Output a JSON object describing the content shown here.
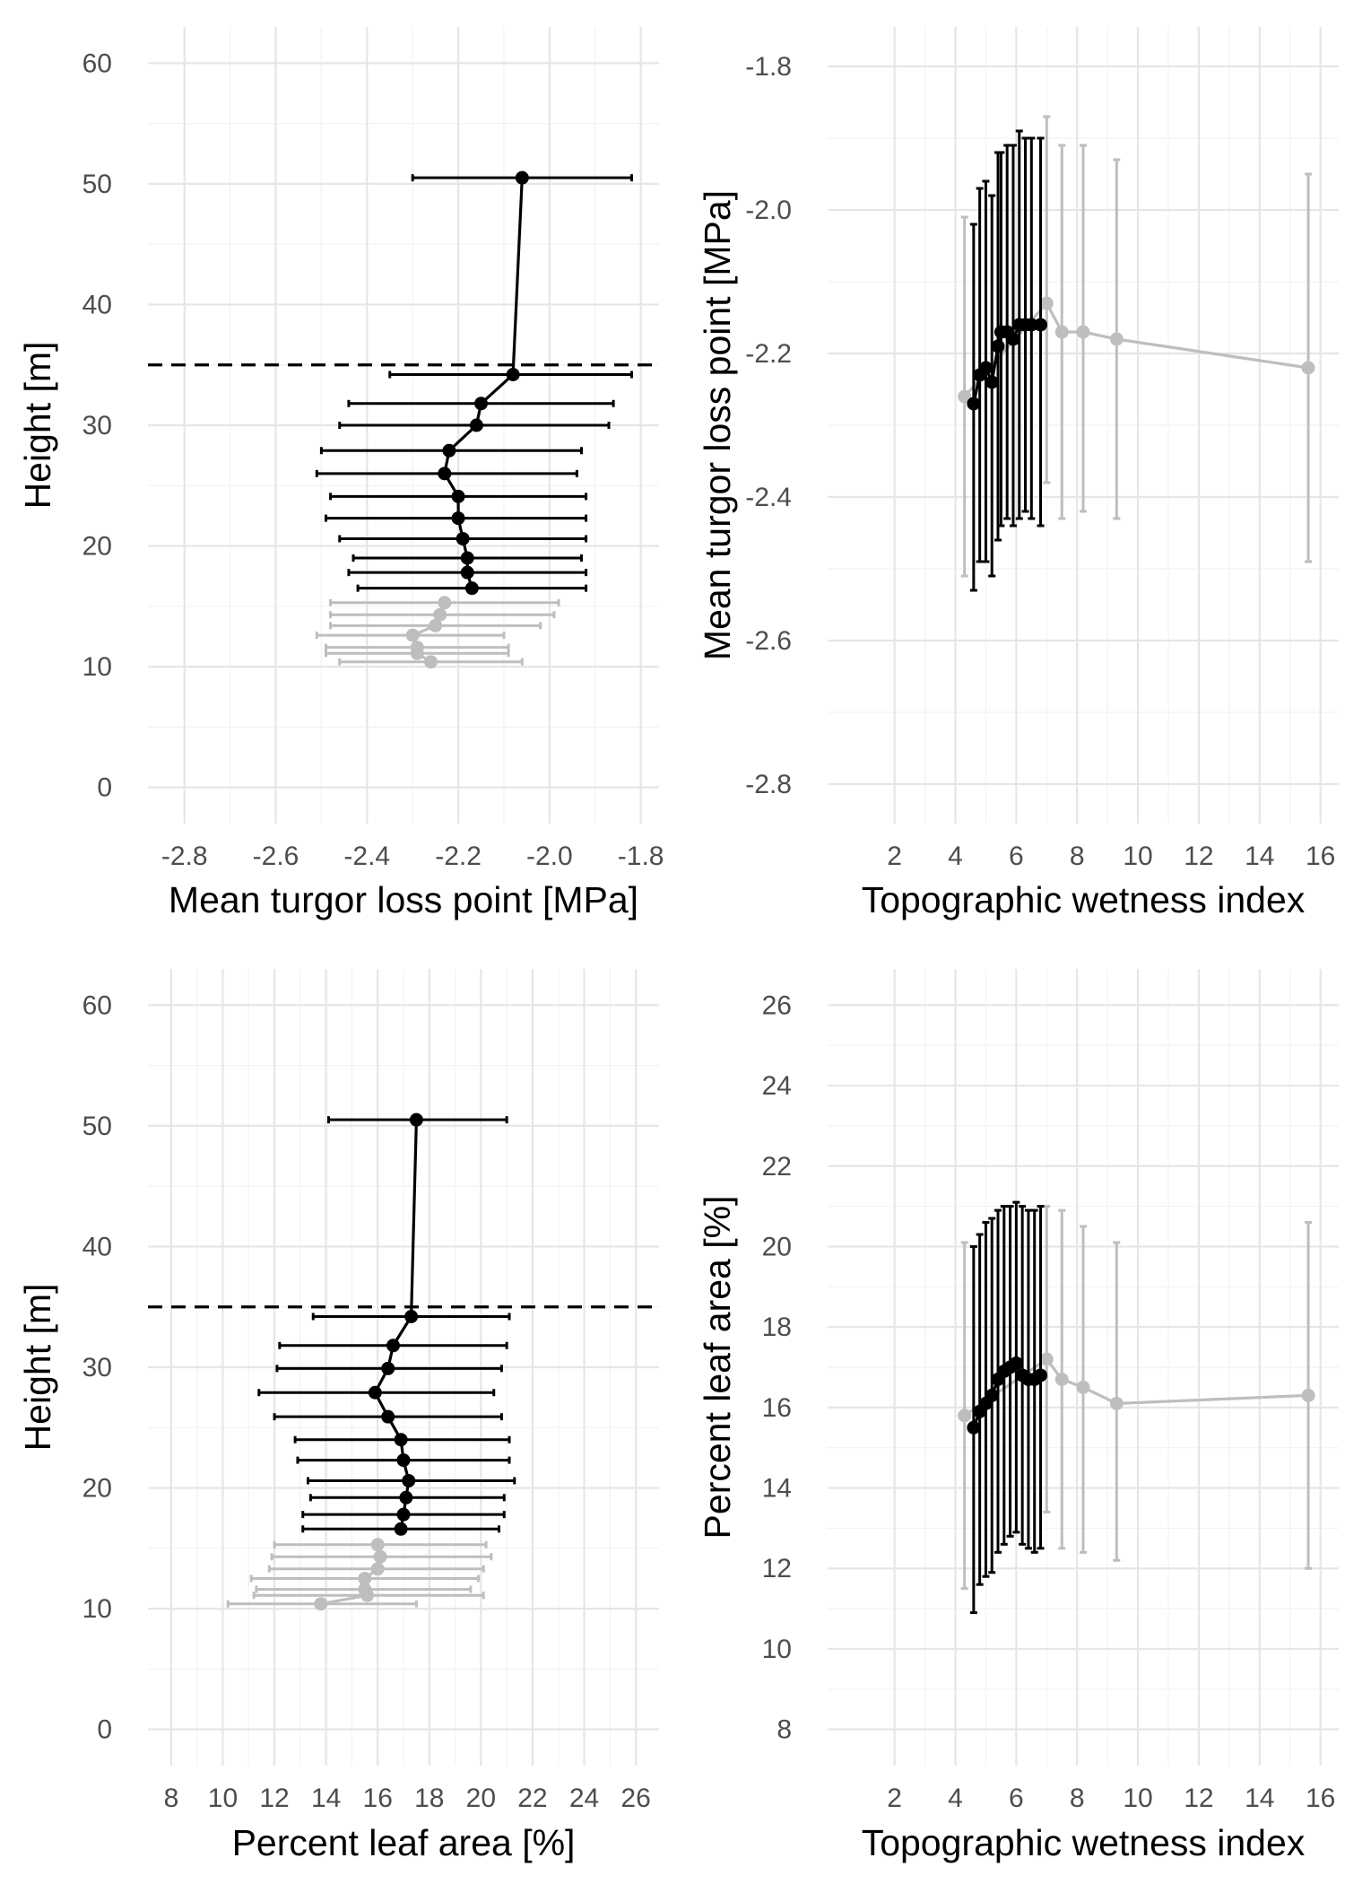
{
  "colors": {
    "canopy": "#000000",
    "understory": "#bebebe",
    "major_grid": "#e6e6e6",
    "minor_grid": "#f2f2f2",
    "tick_text": "#4d4d4d",
    "reference_line": "#000000"
  },
  "chart_data": [
    {
      "type": "line",
      "panel": "top-left",
      "title": "",
      "xlabel": "Mean turgor loss point [MPa]",
      "ylabel": "Height [m]",
      "xlim": [
        -2.88,
        -1.76
      ],
      "ylim": [
        -3,
        63
      ],
      "x_ticks": [
        -2.8,
        -2.6,
        -2.4,
        -2.2,
        -2.0,
        -1.8
      ],
      "x_tick_labels": [
        "-2.8",
        "-2.6",
        "-2.4",
        "-2.2",
        "-2.0",
        "-1.8"
      ],
      "y_ticks": [
        0,
        10,
        20,
        30,
        40,
        50,
        60
      ],
      "y_tick_labels": [
        "0",
        "10",
        "20",
        "30",
        "40",
        "50",
        "60"
      ],
      "grid": true,
      "reference_line": {
        "axis": "y",
        "value": 35,
        "style": "dashed"
      },
      "series": [
        {
          "style": "canopy",
          "points": [
            {
              "x": -2.17,
              "y": 16.5,
              "lo": -2.42,
              "hi": -1.92
            },
            {
              "x": -2.18,
              "y": 17.8,
              "lo": -2.44,
              "hi": -1.92
            },
            {
              "x": -2.18,
              "y": 19.0,
              "lo": -2.43,
              "hi": -1.93
            },
            {
              "x": -2.19,
              "y": 20.6,
              "lo": -2.46,
              "hi": -1.92
            },
            {
              "x": -2.2,
              "y": 22.3,
              "lo": -2.49,
              "hi": -1.92
            },
            {
              "x": -2.2,
              "y": 24.1,
              "lo": -2.48,
              "hi": -1.92
            },
            {
              "x": -2.23,
              "y": 26.0,
              "lo": -2.51,
              "hi": -1.94
            },
            {
              "x": -2.22,
              "y": 27.9,
              "lo": -2.5,
              "hi": -1.93
            },
            {
              "x": -2.16,
              "y": 30.0,
              "lo": -2.46,
              "hi": -1.87
            },
            {
              "x": -2.15,
              "y": 31.8,
              "lo": -2.44,
              "hi": -1.86
            },
            {
              "x": -2.08,
              "y": 34.2,
              "lo": -2.35,
              "hi": -1.82
            },
            {
              "x": -2.06,
              "y": 50.5,
              "lo": -2.3,
              "hi": -1.82
            }
          ]
        },
        {
          "style": "understory",
          "points": [
            {
              "x": -2.26,
              "y": 10.4,
              "lo": -2.46,
              "hi": -2.06
            },
            {
              "x": -2.29,
              "y": 11.1,
              "lo": -2.49,
              "hi": -2.09
            },
            {
              "x": -2.29,
              "y": 11.6,
              "lo": -2.49,
              "hi": -2.09
            },
            {
              "x": -2.3,
              "y": 12.6,
              "lo": -2.51,
              "hi": -2.1
            },
            {
              "x": -2.25,
              "y": 13.4,
              "lo": -2.48,
              "hi": -2.02
            },
            {
              "x": -2.24,
              "y": 14.3,
              "lo": -2.48,
              "hi": -1.99
            },
            {
              "x": -2.23,
              "y": 15.3,
              "lo": -2.48,
              "hi": -1.98
            }
          ]
        }
      ]
    },
    {
      "type": "line",
      "panel": "top-right",
      "title": "",
      "xlabel": "Topographic wetness index",
      "ylabel": "Mean turgor loss point [MPa]",
      "xlim": [
        -0.2,
        16.6
      ],
      "ylim": [
        -2.855,
        -1.745
      ],
      "x_ticks": [
        2,
        4,
        6,
        8,
        10,
        12,
        14,
        16
      ],
      "x_tick_labels": [
        "2",
        "4",
        "6",
        "8",
        "10",
        "12",
        "14",
        "16"
      ],
      "y_ticks": [
        -2.8,
        -2.6,
        -2.4,
        -2.2,
        -2.0,
        -1.8
      ],
      "y_tick_labels": [
        "-2.8",
        "-2.6",
        "-2.4",
        "-2.2",
        "-2.0",
        "-1.8"
      ],
      "grid": true,
      "series": [
        {
          "style": "understory",
          "points": [
            {
              "x": 4.3,
              "y": -2.26,
              "lo": -2.51,
              "hi": -2.01
            },
            {
              "x": 7.0,
              "y": -2.13,
              "lo": -2.38,
              "hi": -1.87
            },
            {
              "x": 7.5,
              "y": -2.17,
              "lo": -2.43,
              "hi": -1.91
            },
            {
              "x": 8.2,
              "y": -2.17,
              "lo": -2.42,
              "hi": -1.91
            },
            {
              "x": 9.3,
              "y": -2.18,
              "lo": -2.43,
              "hi": -1.93
            },
            {
              "x": 15.6,
              "y": -2.22,
              "lo": -2.49,
              "hi": -1.95
            }
          ]
        },
        {
          "style": "canopy",
          "points": [
            {
              "x": 4.6,
              "y": -2.27,
              "lo": -2.53,
              "hi": -2.02
            },
            {
              "x": 4.8,
              "y": -2.23,
              "lo": -2.49,
              "hi": -1.97
            },
            {
              "x": 5.0,
              "y": -2.22,
              "lo": -2.49,
              "hi": -1.96
            },
            {
              "x": 5.2,
              "y": -2.24,
              "lo": -2.51,
              "hi": -1.98
            },
            {
              "x": 5.4,
              "y": -2.19,
              "lo": -2.46,
              "hi": -1.92
            },
            {
              "x": 5.5,
              "y": -2.17,
              "lo": -2.44,
              "hi": -1.92
            },
            {
              "x": 5.7,
              "y": -2.17,
              "lo": -2.43,
              "hi": -1.91
            },
            {
              "x": 5.9,
              "y": -2.18,
              "lo": -2.44,
              "hi": -1.91
            },
            {
              "x": 6.1,
              "y": -2.16,
              "lo": -2.43,
              "hi": -1.89
            },
            {
              "x": 6.3,
              "y": -2.16,
              "lo": -2.42,
              "hi": -1.9
            },
            {
              "x": 6.5,
              "y": -2.16,
              "lo": -2.43,
              "hi": -1.9
            },
            {
              "x": 6.8,
              "y": -2.16,
              "lo": -2.44,
              "hi": -1.9
            }
          ]
        }
      ]
    },
    {
      "type": "line",
      "panel": "bottom-left",
      "title": "",
      "xlabel": "Percent leaf area [%]",
      "ylabel": "Height [m]",
      "xlim": [
        7.1,
        26.9
      ],
      "ylim": [
        -3,
        63
      ],
      "x_ticks": [
        8,
        10,
        12,
        14,
        16,
        18,
        20,
        22,
        24,
        26
      ],
      "x_tick_labels": [
        "8",
        "10",
        "12",
        "14",
        "16",
        "18",
        "20",
        "22",
        "24",
        "26"
      ],
      "y_ticks": [
        0,
        10,
        20,
        30,
        40,
        50,
        60
      ],
      "y_tick_labels": [
        "0",
        "10",
        "20",
        "30",
        "40",
        "50",
        "60"
      ],
      "grid": true,
      "reference_line": {
        "axis": "y",
        "value": 35,
        "style": "dashed"
      },
      "series": [
        {
          "style": "canopy",
          "points": [
            {
              "x": 16.9,
              "y": 16.6,
              "lo": 13.1,
              "hi": 20.7
            },
            {
              "x": 17.0,
              "y": 17.8,
              "lo": 13.1,
              "hi": 20.9
            },
            {
              "x": 17.1,
              "y": 19.2,
              "lo": 13.4,
              "hi": 20.9
            },
            {
              "x": 17.2,
              "y": 20.6,
              "lo": 13.3,
              "hi": 21.3
            },
            {
              "x": 17.0,
              "y": 22.3,
              "lo": 12.9,
              "hi": 21.1
            },
            {
              "x": 16.9,
              "y": 24.0,
              "lo": 12.8,
              "hi": 21.1
            },
            {
              "x": 16.4,
              "y": 25.9,
              "lo": 12.0,
              "hi": 20.8
            },
            {
              "x": 15.9,
              "y": 27.9,
              "lo": 11.4,
              "hi": 20.5
            },
            {
              "x": 16.4,
              "y": 29.9,
              "lo": 12.1,
              "hi": 20.8
            },
            {
              "x": 16.6,
              "y": 31.8,
              "lo": 12.2,
              "hi": 21.0
            },
            {
              "x": 17.3,
              "y": 34.2,
              "lo": 13.5,
              "hi": 21.1
            },
            {
              "x": 17.5,
              "y": 50.5,
              "lo": 14.1,
              "hi": 21.0
            }
          ]
        },
        {
          "style": "understory",
          "points": [
            {
              "x": 13.8,
              "y": 10.4,
              "lo": 10.2,
              "hi": 17.5
            },
            {
              "x": 15.6,
              "y": 11.1,
              "lo": 11.2,
              "hi": 20.1
            },
            {
              "x": 15.5,
              "y": 11.6,
              "lo": 11.3,
              "hi": 19.6
            },
            {
              "x": 15.5,
              "y": 12.5,
              "lo": 11.1,
              "hi": 19.9
            },
            {
              "x": 16.0,
              "y": 13.3,
              "lo": 11.8,
              "hi": 20.1
            },
            {
              "x": 16.1,
              "y": 14.3,
              "lo": 11.9,
              "hi": 20.4
            },
            {
              "x": 16.0,
              "y": 15.3,
              "lo": 12.0,
              "hi": 20.2
            }
          ]
        }
      ]
    },
    {
      "type": "line",
      "panel": "bottom-right",
      "title": "",
      "xlabel": "Topographic wetness index",
      "ylabel": "Percent leaf area [%]",
      "xlim": [
        -0.2,
        16.6
      ],
      "ylim": [
        7.1,
        26.9
      ],
      "x_ticks": [
        2,
        4,
        6,
        8,
        10,
        12,
        14,
        16
      ],
      "x_tick_labels": [
        "2",
        "4",
        "6",
        "8",
        "10",
        "12",
        "14",
        "16"
      ],
      "y_ticks": [
        8,
        10,
        12,
        14,
        16,
        18,
        20,
        22,
        24,
        26
      ],
      "y_tick_labels": [
        "8",
        "10",
        "12",
        "14",
        "16",
        "18",
        "20",
        "22",
        "24",
        "26"
      ],
      "grid": true,
      "series": [
        {
          "style": "understory",
          "points": [
            {
              "x": 4.3,
              "y": 15.8,
              "lo": 11.5,
              "hi": 20.1
            },
            {
              "x": 7.0,
              "y": 17.2,
              "lo": 13.4,
              "hi": 21.0
            },
            {
              "x": 7.5,
              "y": 16.7,
              "lo": 12.5,
              "hi": 20.9
            },
            {
              "x": 8.2,
              "y": 16.5,
              "lo": 12.4,
              "hi": 20.5
            },
            {
              "x": 9.3,
              "y": 16.1,
              "lo": 12.2,
              "hi": 20.1
            },
            {
              "x": 15.6,
              "y": 16.3,
              "lo": 12.0,
              "hi": 20.6
            }
          ]
        },
        {
          "style": "canopy",
          "points": [
            {
              "x": 4.6,
              "y": 15.5,
              "lo": 10.9,
              "hi": 20.0
            },
            {
              "x": 4.8,
              "y": 15.9,
              "lo": 11.6,
              "hi": 20.3
            },
            {
              "x": 5.0,
              "y": 16.1,
              "lo": 11.8,
              "hi": 20.6
            },
            {
              "x": 5.2,
              "y": 16.3,
              "lo": 11.9,
              "hi": 20.7
            },
            {
              "x": 5.4,
              "y": 16.7,
              "lo": 12.4,
              "hi": 20.9
            },
            {
              "x": 5.6,
              "y": 16.9,
              "lo": 12.6,
              "hi": 21.0
            },
            {
              "x": 5.8,
              "y": 17.0,
              "lo": 12.8,
              "hi": 21.0
            },
            {
              "x": 6.0,
              "y": 17.1,
              "lo": 12.9,
              "hi": 21.1
            },
            {
              "x": 6.2,
              "y": 16.8,
              "lo": 12.6,
              "hi": 21.0
            },
            {
              "x": 6.4,
              "y": 16.7,
              "lo": 12.5,
              "hi": 20.9
            },
            {
              "x": 6.6,
              "y": 16.7,
              "lo": 12.4,
              "hi": 20.9
            },
            {
              "x": 6.8,
              "y": 16.8,
              "lo": 12.5,
              "hi": 21.0
            }
          ]
        }
      ]
    }
  ]
}
